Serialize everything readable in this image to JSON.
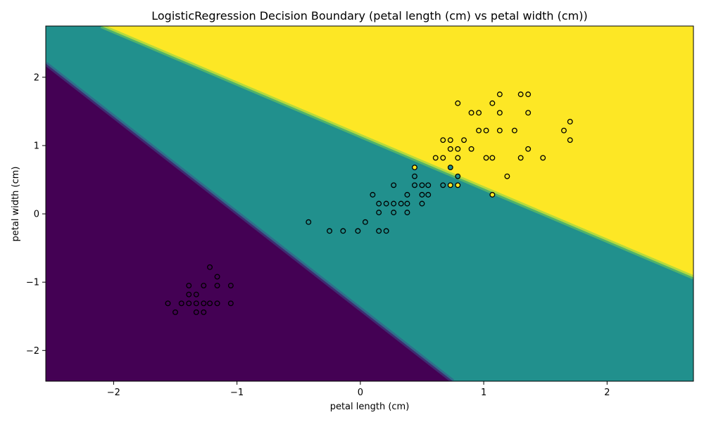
{
  "chart_data": {
    "type": "scatter",
    "title": "LogisticRegression Decision Boundary (petal length (cm) vs petal width (cm))",
    "xlabel": "petal length (cm)",
    "ylabel": "petal width (cm)",
    "xlim": [
      -2.55,
      2.7
    ],
    "ylim": [
      -2.45,
      2.75
    ],
    "xticks": [
      -2,
      -1,
      0,
      1,
      2
    ],
    "yticks": [
      -2,
      -1,
      0,
      1,
      2
    ],
    "grid": false,
    "regions": [
      {
        "class": 0,
        "color": "#440154"
      },
      {
        "class": 1,
        "color": "#21908d"
      },
      {
        "class": 2,
        "color": "#fde725"
      }
    ],
    "boundaries": [
      {
        "between": [
          0,
          1
        ],
        "from": [
          -2.55,
          2.2
        ],
        "to": [
          0.75,
          -2.45
        ]
      },
      {
        "between": [
          1,
          2
        ],
        "from": [
          -2.1,
          2.75
        ],
        "to": [
          2.7,
          -0.93
        ]
      }
    ],
    "series": [
      {
        "class": 0,
        "color": "#440154",
        "points": [
          [
            -1.56,
            -1.31
          ],
          [
            -1.5,
            -1.44
          ],
          [
            -1.45,
            -1.31
          ],
          [
            -1.39,
            -1.05
          ],
          [
            -1.39,
            -1.18
          ],
          [
            -1.39,
            -1.31
          ],
          [
            -1.33,
            -1.18
          ],
          [
            -1.33,
            -1.31
          ],
          [
            -1.33,
            -1.44
          ],
          [
            -1.27,
            -1.05
          ],
          [
            -1.27,
            -1.31
          ],
          [
            -1.27,
            -1.44
          ],
          [
            -1.22,
            -0.78
          ],
          [
            -1.22,
            -1.31
          ],
          [
            -1.16,
            -0.92
          ],
          [
            -1.16,
            -1.05
          ],
          [
            -1.16,
            -1.31
          ],
          [
            -1.05,
            -1.05
          ],
          [
            -1.05,
            -1.31
          ]
        ]
      },
      {
        "class": 1,
        "color": "#21908d",
        "points": [
          [
            -0.42,
            -0.12
          ],
          [
            -0.25,
            -0.25
          ],
          [
            -0.14,
            -0.25
          ],
          [
            -0.02,
            -0.25
          ],
          [
            0.04,
            -0.12
          ],
          [
            0.1,
            0.28
          ],
          [
            0.15,
            0.15
          ],
          [
            0.15,
            0.02
          ],
          [
            0.15,
            -0.25
          ],
          [
            0.21,
            0.15
          ],
          [
            0.21,
            -0.25
          ],
          [
            0.27,
            0.42
          ],
          [
            0.27,
            0.15
          ],
          [
            0.27,
            0.02
          ],
          [
            0.33,
            0.15
          ],
          [
            0.38,
            0.28
          ],
          [
            0.38,
            0.15
          ],
          [
            0.38,
            0.02
          ],
          [
            0.44,
            0.55
          ],
          [
            0.44,
            0.42
          ],
          [
            0.5,
            0.42
          ],
          [
            0.5,
            0.28
          ],
          [
            0.5,
            0.15
          ],
          [
            0.55,
            0.42
          ],
          [
            0.55,
            0.28
          ],
          [
            0.67,
            0.42
          ],
          [
            0.73,
            0.68
          ],
          [
            0.79,
            0.55
          ]
        ]
      },
      {
        "class": 2,
        "color": "#fde725",
        "points": [
          [
            0.44,
            0.68
          ],
          [
            0.61,
            0.82
          ],
          [
            0.67,
            1.08
          ],
          [
            0.67,
            0.82
          ],
          [
            0.73,
            1.08
          ],
          [
            0.73,
            0.95
          ],
          [
            0.73,
            0.42
          ],
          [
            0.79,
            1.62
          ],
          [
            0.79,
            0.95
          ],
          [
            0.79,
            0.82
          ],
          [
            0.79,
            0.42
          ],
          [
            0.84,
            1.08
          ],
          [
            0.9,
            1.48
          ],
          [
            0.9,
            0.95
          ],
          [
            0.96,
            1.48
          ],
          [
            0.96,
            1.22
          ],
          [
            1.02,
            1.22
          ],
          [
            1.02,
            0.82
          ],
          [
            1.07,
            1.62
          ],
          [
            1.07,
            0.82
          ],
          [
            1.07,
            0.28
          ],
          [
            1.13,
            1.75
          ],
          [
            1.13,
            1.48
          ],
          [
            1.13,
            1.22
          ],
          [
            1.19,
            0.55
          ],
          [
            1.25,
            1.22
          ],
          [
            1.3,
            1.75
          ],
          [
            1.3,
            0.82
          ],
          [
            1.36,
            1.75
          ],
          [
            1.36,
            1.48
          ],
          [
            1.36,
            0.95
          ],
          [
            1.48,
            0.82
          ],
          [
            1.65,
            1.22
          ],
          [
            1.7,
            1.35
          ],
          [
            1.7,
            1.08
          ]
        ]
      }
    ]
  }
}
